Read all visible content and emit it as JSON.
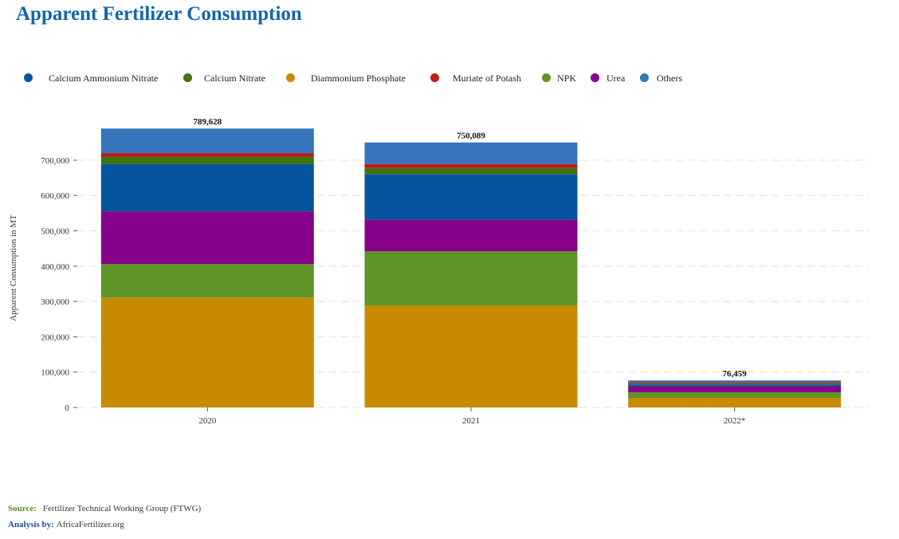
{
  "title": "Apparent Fertilizer Consumption",
  "chart_data": {
    "type": "bar",
    "stacked": true,
    "categories": [
      "2020",
      "2021",
      "2022*"
    ],
    "ylabel": "Apparent Consumption in MT",
    "xlabel": "",
    "ylim": [
      0,
      790000
    ],
    "yticks": [
      0,
      100000,
      200000,
      300000,
      400000,
      500000,
      600000,
      700000
    ],
    "ytick_labels": [
      "0",
      "100,000",
      "200,000",
      "300,000",
      "400,000",
      "500,000",
      "600,000",
      "700,000"
    ],
    "grid": true,
    "legend_position": "top",
    "totals": [
      "789,628",
      "750,089",
      "76,459"
    ],
    "series": [
      {
        "name": "Diammonium Phosphate",
        "color": "#c88a00",
        "values": [
          311000,
          288000,
          27000
        ]
      },
      {
        "name": "NPK",
        "color": "#5f9428",
        "values": [
          95000,
          154000,
          16000
        ]
      },
      {
        "name": "Urea",
        "color": "#87008a",
        "values": [
          149000,
          90000,
          17000
        ]
      },
      {
        "name": "Calcium Ammonium Nitrate",
        "color": "#06549f",
        "values": [
          134000,
          128000,
          5000
        ]
      },
      {
        "name": "Calcium Nitrate",
        "color": "#3f7210",
        "values": [
          21000,
          18000,
          3500
        ]
      },
      {
        "name": "Muriate of Potash",
        "color": "#c11b1b",
        "values": [
          10000,
          11000,
          2500
        ]
      },
      {
        "name": "Others",
        "color": "#3674bb",
        "values": [
          69628,
          61089,
          5459
        ]
      }
    ]
  },
  "legend": [
    {
      "label": "Calcium Ammonium Nitrate",
      "color": "#06549f"
    },
    {
      "label": "Calcium Nitrate",
      "color": "#3f7210"
    },
    {
      "label": "Diammonium Phosphate",
      "color": "#c88a00"
    },
    {
      "label": "Muriate of Potash",
      "color": "#c11b1b"
    },
    {
      "label": "NPK",
      "color": "#5f9428"
    },
    {
      "label": "Urea",
      "color": "#87008a"
    },
    {
      "label": "Others",
      "color": "#3674bb"
    }
  ],
  "footer": {
    "source_label": "Source:",
    "source_value": "Fertilizer Technical Working Group (FTWG)",
    "analysis_label": "Analysis by:",
    "analysis_value": "AfricaFertilizer.org"
  }
}
